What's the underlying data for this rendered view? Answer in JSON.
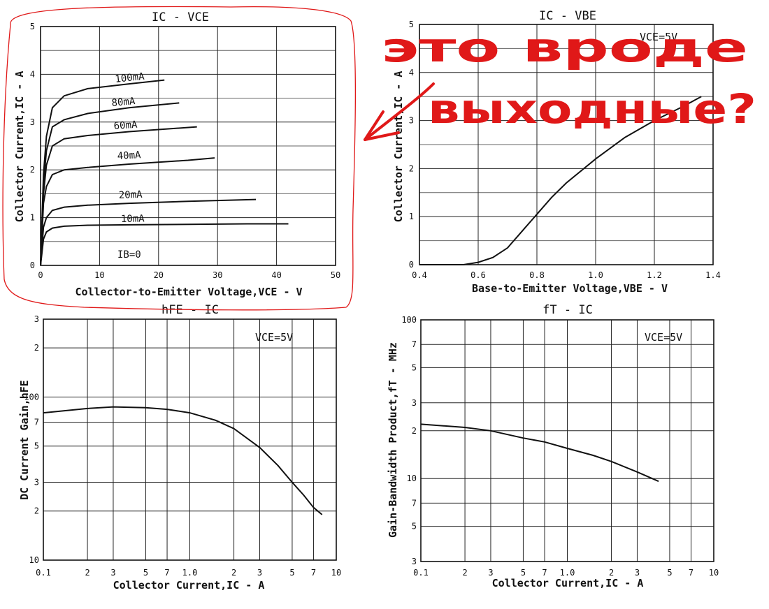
{
  "annotation": {
    "line1": "это вроде",
    "line2": "выходные?",
    "color": "#e01818"
  },
  "chart_data": [
    {
      "type": "line",
      "title": "IC - VCE",
      "xlabel": "Collector-to-Emitter Voltage,VCE - V",
      "ylabel": "Collector Current,IC - A",
      "xlim": [
        0,
        50
      ],
      "ylim": [
        0,
        5
      ],
      "xticks": [
        "0",
        "10",
        "20",
        "30",
        "40",
        "50"
      ],
      "yticks": [
        "0",
        "1",
        "2",
        "3",
        "4",
        "5"
      ],
      "grid": true,
      "curve_label_zero": "IB=0",
      "series": [
        {
          "name": "10mA",
          "x": [
            0,
            0.5,
            1,
            2,
            4,
            8,
            15,
            25,
            35,
            42
          ],
          "y": [
            0,
            0.55,
            0.7,
            0.78,
            0.82,
            0.84,
            0.85,
            0.86,
            0.87,
            0.87
          ]
        },
        {
          "name": "20mA",
          "x": [
            0,
            0.5,
            1,
            2,
            4,
            8,
            15,
            25,
            36.5
          ],
          "y": [
            0,
            0.8,
            1.0,
            1.15,
            1.22,
            1.26,
            1.3,
            1.34,
            1.38
          ]
        },
        {
          "name": "40mA",
          "x": [
            0,
            0.5,
            1,
            2,
            4,
            8,
            15,
            25,
            29.5
          ],
          "y": [
            0,
            1.3,
            1.65,
            1.9,
            2.0,
            2.05,
            2.12,
            2.2,
            2.25
          ]
        },
        {
          "name": "60mA",
          "x": [
            0,
            0.5,
            1,
            2,
            4,
            8,
            15,
            26.5
          ],
          "y": [
            0,
            1.5,
            2.1,
            2.5,
            2.65,
            2.72,
            2.8,
            2.9
          ]
        },
        {
          "name": "80mA",
          "x": [
            0,
            0.5,
            1,
            2,
            4,
            8,
            15,
            23.5
          ],
          "y": [
            0,
            1.7,
            2.4,
            2.9,
            3.05,
            3.18,
            3.3,
            3.4
          ]
        },
        {
          "name": "100mA",
          "x": [
            0,
            0.5,
            1,
            2,
            4,
            8,
            15,
            21
          ],
          "y": [
            0,
            1.9,
            2.7,
            3.3,
            3.55,
            3.7,
            3.8,
            3.88
          ]
        }
      ]
    },
    {
      "type": "line",
      "title": "IC - VBE",
      "condition": "VCE=5V",
      "xlabel": "Base-to-Emitter Voltage,VBE - V",
      "ylabel": "Collector Current,IC - A",
      "xlim": [
        0.4,
        1.4
      ],
      "ylim": [
        0,
        5
      ],
      "xticks": [
        "0.4",
        "0.6",
        "0.8",
        "1.0",
        "1.2",
        "1.4"
      ],
      "yticks": [
        "0",
        "1",
        "2",
        "3",
        "4",
        "5"
      ],
      "grid": true,
      "series": [
        {
          "name": "",
          "x": [
            0.4,
            0.55,
            0.6,
            0.65,
            0.7,
            0.75,
            0.8,
            0.85,
            0.9,
            1.0,
            1.1,
            1.2,
            1.3,
            1.36
          ],
          "y": [
            0,
            0,
            0.05,
            0.15,
            0.35,
            0.7,
            1.05,
            1.4,
            1.7,
            2.2,
            2.65,
            3.0,
            3.3,
            3.5
          ]
        }
      ]
    },
    {
      "type": "line",
      "title": "hFE - IC",
      "condition": "VCE=5V",
      "xlabel": "Collector Current,IC - A",
      "ylabel": "DC Current Gain,hFE",
      "xscale": "log",
      "yscale": "log",
      "xlim": [
        0.1,
        10
      ],
      "ylim": [
        10,
        300
      ],
      "xticks": [
        {
          "v": 0.1,
          "t": "0.1"
        },
        {
          "v": 0.2,
          "t": "2"
        },
        {
          "v": 0.3,
          "t": "3"
        },
        {
          "v": 0.5,
          "t": "5"
        },
        {
          "v": 0.7,
          "t": "7"
        },
        {
          "v": 1,
          "t": "1.0"
        },
        {
          "v": 2,
          "t": "2"
        },
        {
          "v": 3,
          "t": "3"
        },
        {
          "v": 5,
          "t": "5"
        },
        {
          "v": 7,
          "t": "7"
        },
        {
          "v": 10,
          "t": "10"
        }
      ],
      "yticks": [
        {
          "v": 10,
          "t": "10"
        },
        {
          "v": 20,
          "t": "2"
        },
        {
          "v": 30,
          "t": "3"
        },
        {
          "v": 50,
          "t": "5"
        },
        {
          "v": 70,
          "t": "7"
        },
        {
          "v": 100,
          "t": "100"
        },
        {
          "v": 200,
          "t": "2"
        },
        {
          "v": 300,
          "t": "3"
        }
      ],
      "grid": true,
      "series": [
        {
          "name": "",
          "x": [
            0.1,
            0.2,
            0.3,
            0.5,
            0.7,
            1.0,
            1.5,
            2.0,
            3.0,
            4.0,
            5.0,
            6.0,
            7.0,
            8.0
          ],
          "y": [
            80,
            85,
            87,
            86,
            84,
            80,
            72,
            64,
            49,
            38,
            30,
            25,
            21,
            19
          ]
        }
      ]
    },
    {
      "type": "line",
      "title": "fT - IC",
      "condition": "VCE=5V",
      "xlabel": "Collector Current,IC - A",
      "ylabel": "Gain-Bandwidth Product,fT - MHz",
      "xscale": "log",
      "yscale": "log",
      "xlim": [
        0.1,
        10
      ],
      "ylim": [
        3,
        100
      ],
      "xticks": [
        {
          "v": 0.1,
          "t": "0.1"
        },
        {
          "v": 0.2,
          "t": "2"
        },
        {
          "v": 0.3,
          "t": "3"
        },
        {
          "v": 0.5,
          "t": "5"
        },
        {
          "v": 0.7,
          "t": "7"
        },
        {
          "v": 1,
          "t": "1.0"
        },
        {
          "v": 2,
          "t": "2"
        },
        {
          "v": 3,
          "t": "3"
        },
        {
          "v": 5,
          "t": "5"
        },
        {
          "v": 7,
          "t": "7"
        },
        {
          "v": 10,
          "t": "10"
        }
      ],
      "yticks": [
        {
          "v": 3,
          "t": "3"
        },
        {
          "v": 5,
          "t": "5"
        },
        {
          "v": 7,
          "t": "7"
        },
        {
          "v": 10,
          "t": "10"
        },
        {
          "v": 20,
          "t": "2"
        },
        {
          "v": 30,
          "t": "3"
        },
        {
          "v": 50,
          "t": "5"
        },
        {
          "v": 70,
          "t": "7"
        },
        {
          "v": 100,
          "t": "100"
        }
      ],
      "grid": true,
      "series": [
        {
          "name": "",
          "x": [
            0.1,
            0.2,
            0.3,
            0.5,
            0.7,
            1.0,
            1.5,
            2.0,
            3.0,
            4.2
          ],
          "y": [
            22,
            21,
            20,
            18,
            17,
            15.5,
            14,
            12.8,
            11,
            9.6
          ]
        }
      ]
    }
  ]
}
